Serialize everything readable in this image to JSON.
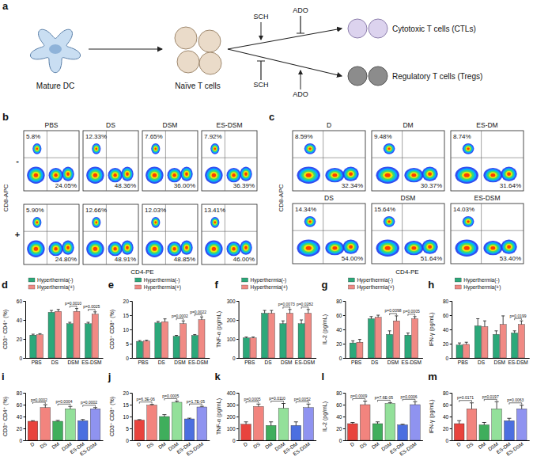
{
  "diagram": {
    "panel": "a",
    "dc": "Mature DC",
    "naive": "Naïve T cells",
    "ctl": "Cytotoxic T cells (CTLs)",
    "treg": "Regulatory T cells (Tregs)",
    "ctl_modulators": [
      "SCH",
      "ADO"
    ],
    "treg_modulators": [
      "SCH",
      "ADO"
    ]
  },
  "flow_b": {
    "panel": "b",
    "y_label": "CD8-APC",
    "x_label": "CD4-PE",
    "columns": [
      "PBS",
      "DS",
      "DSM",
      "ES-DSM"
    ],
    "rows": [
      {
        "label": "-",
        "cd8": [
          "5.8%",
          "12.33%",
          "7.65%",
          "7.92%"
        ],
        "cd4": [
          "24.05%",
          "48.36%",
          "36.00%",
          "36.39%"
        ]
      },
      {
        "label": "+",
        "cd8": [
          "5.90%",
          "12.66%",
          "12.03%",
          "13.41%"
        ],
        "cd4": [
          "24.80%",
          "48.91%",
          "48.85%",
          "46.00%"
        ]
      }
    ]
  },
  "flow_c": {
    "panel": "c",
    "y_label": "CD8-APC",
    "x_label": "CD4-PE",
    "plots": [
      {
        "title": "D",
        "cd8": "8.59%",
        "cd4": "32.34%"
      },
      {
        "title": "DM",
        "cd8": "9.48%",
        "cd4": "30.37%"
      },
      {
        "title": "ES-DM",
        "cd8": "8.74%",
        "cd4": "31.64%"
      },
      {
        "title": "DS",
        "cd8": "14.34%",
        "cd4": "54.00%"
      },
      {
        "title": "DSM",
        "cd8": "15.64%",
        "cd4": "51.64%"
      },
      {
        "title": "ES-DSM",
        "cd8": "14.03%",
        "cd4": "53.40%"
      }
    ]
  },
  "chart_data": [
    {
      "type": "bar",
      "panel": "d",
      "y_label": "CD3⁺ CD4⁺ (%)",
      "categories": [
        "PBS",
        "DS",
        "DSM",
        "ES-DSM"
      ],
      "series": [
        {
          "name": "Hyperthermia(-)",
          "color": "#2ca87a",
          "values": [
            24,
            48,
            36,
            36
          ],
          "errors": [
            1,
            2,
            1.5,
            1.5
          ]
        },
        {
          "name": "Hyperthermia(+)",
          "color": "#f08a84",
          "values": [
            24.5,
            49,
            49,
            46
          ],
          "errors": [
            1,
            2,
            3,
            2.5
          ]
        }
      ],
      "ylim": [
        0,
        60
      ],
      "yticks": [
        0,
        20,
        40,
        60
      ],
      "legend": "top",
      "annotations": [
        {
          "category": 2,
          "label": "p=0.0010"
        },
        {
          "category": 3,
          "label": "p=0.0025"
        }
      ]
    },
    {
      "type": "bar",
      "panel": "e",
      "y_label": "CD3⁺ CD8⁺ (%)",
      "categories": [
        "PBS",
        "DS",
        "DSM",
        "ES-DSM"
      ],
      "series": [
        {
          "name": "Hyperthermia(-)",
          "color": "#2ca87a",
          "values": [
            5.8,
            12.3,
            7.6,
            7.9
          ],
          "errors": [
            0.3,
            0.5,
            0.3,
            0.3
          ]
        },
        {
          "name": "Hyperthermia(+)",
          "color": "#f08a84",
          "values": [
            5.9,
            12.7,
            12.0,
            13.4
          ],
          "errors": [
            0.3,
            1,
            1,
            1
          ]
        }
      ],
      "ylim": [
        0,
        20
      ],
      "yticks": [
        0,
        5,
        10,
        15,
        20
      ],
      "legend": "top",
      "annotations": [
        {
          "category": 2,
          "label": "p=0.0002"
        },
        {
          "category": 3,
          "label": "p=0.0022"
        }
      ]
    },
    {
      "type": "bar",
      "panel": "f",
      "y_label": "TNF-α (pg/mL)",
      "categories": [
        "PBS",
        "DS",
        "DSM",
        "ES-DSM"
      ],
      "series": [
        {
          "name": "Hyperthermia(-)",
          "color": "#2ca87a",
          "values": [
            105,
            235,
            180,
            180
          ],
          "errors": [
            5,
            15,
            15,
            20
          ]
        },
        {
          "name": "Hyperthermia(+)",
          "color": "#f08a84",
          "values": [
            105,
            235,
            235,
            235
          ],
          "errors": [
            5,
            15,
            20,
            20
          ]
        }
      ],
      "ylim": [
        0,
        300
      ],
      "yticks": [
        0,
        100,
        200,
        300
      ],
      "legend": "top",
      "annotations": [
        {
          "category": 2,
          "label": "p=0.0073"
        },
        {
          "category": 3,
          "label": "p=0.0282"
        }
      ]
    },
    {
      "type": "bar",
      "panel": "g",
      "y_label": "IL-2 (pg/mL)",
      "categories": [
        "PBS",
        "DS",
        "DSM",
        "ES-DSM"
      ],
      "series": [
        {
          "name": "Hyperthermia(-)",
          "color": "#2ca87a",
          "values": [
            21,
            55,
            33,
            32
          ],
          "errors": [
            3,
            3,
            5,
            3
          ]
        },
        {
          "name": "Hyperthermia(+)",
          "color": "#f08a84",
          "values": [
            22,
            57,
            52,
            55
          ],
          "errors": [
            4,
            3,
            7,
            3
          ]
        }
      ],
      "ylim": [
        0,
        80
      ],
      "yticks": [
        0,
        20,
        40,
        60,
        80
      ],
      "legend": "top",
      "annotations": [
        {
          "category": 2,
          "label": "p=0.0098"
        },
        {
          "category": 3,
          "label": "p=0.0005"
        }
      ]
    },
    {
      "type": "bar",
      "panel": "h",
      "y_label": "IFN-γ (pg/mL)",
      "categories": [
        "PBS",
        "DS",
        "DSM",
        "ES-DSM"
      ],
      "series": [
        {
          "name": "Hyperthermia(-)",
          "color": "#2ca87a",
          "values": [
            18,
            45,
            33,
            35
          ],
          "errors": [
            3,
            10,
            5,
            3
          ]
        },
        {
          "name": "Hyperthermia(+)",
          "color": "#f08a84",
          "values": [
            19,
            44,
            47,
            47
          ],
          "errors": [
            3,
            8,
            12,
            5
          ]
        }
      ],
      "ylim": [
        0,
        80
      ],
      "yticks": [
        0,
        20,
        40,
        60,
        80
      ],
      "legend": "top",
      "annotations": [
        {
          "category": 3,
          "label": "p=0.0199"
        }
      ]
    },
    {
      "type": "bar",
      "panel": "i",
      "y_label": "CD3⁺ CD4⁺ (%)",
      "categories": [
        "D",
        "DS",
        "DM",
        "DSM",
        "ES-DM",
        "ES-DSM"
      ],
      "values": [
        32,
        55,
        32,
        53,
        33,
        53
      ],
      "errors": [
        1,
        5,
        1.5,
        4,
        2,
        2
      ],
      "colors": [
        "#e8433d",
        "#f2847e",
        "#3fae5c",
        "#93e09a",
        "#4b6fe0",
        "#8f93f0"
      ],
      "ylim": [
        0,
        80
      ],
      "yticks": [
        0,
        20,
        40,
        60,
        80
      ],
      "annotations": [
        {
          "between": [
            0,
            1
          ],
          "label": "p=0.0002"
        },
        {
          "between": [
            2,
            3
          ],
          "label": "p=0.0004"
        },
        {
          "between": [
            4,
            5
          ],
          "label": "p=0.0002"
        }
      ]
    },
    {
      "type": "bar",
      "panel": "j",
      "y_label": "CD3⁺ CD8⁺ (%)",
      "categories": [
        "D",
        "DS",
        "DM",
        "DSM",
        "ES-DM",
        "ES-DSM"
      ],
      "values": [
        8.5,
        14.8,
        10,
        16,
        9,
        14
      ],
      "errors": [
        0.2,
        0.3,
        0.8,
        0.5,
        0.3,
        0.3
      ],
      "colors": [
        "#e8433d",
        "#f2847e",
        "#3fae5c",
        "#93e09a",
        "#4b6fe0",
        "#8f93f0"
      ],
      "ylim": [
        0,
        20
      ],
      "yticks": [
        0,
        5,
        10,
        15,
        20
      ],
      "annotations": [
        {
          "between": [
            0,
            1
          ],
          "label": "p=6.3E-06"
        },
        {
          "between": [
            2,
            3
          ],
          "label": "p=0.0005"
        },
        {
          "between": [
            4,
            5
          ],
          "label": "p=1.7E-05"
        }
      ]
    },
    {
      "type": "bar",
      "panel": "k",
      "y_label": "TNF-α (pg/mL)",
      "categories": [
        "D",
        "DS",
        "DM",
        "DSM",
        "ES-DM",
        "ES-DSM"
      ],
      "values": [
        135,
        285,
        125,
        270,
        125,
        275
      ],
      "errors": [
        20,
        20,
        30,
        40,
        30,
        30
      ],
      "colors": [
        "#e8433d",
        "#f2847e",
        "#3fae5c",
        "#93e09a",
        "#4b6fe0",
        "#8f93f0"
      ],
      "ylim": [
        0,
        400
      ],
      "yticks": [
        0,
        100,
        200,
        300,
        400
      ],
      "annotations": [
        {
          "between": [
            0,
            1
          ],
          "label": "p=0.0005"
        },
        {
          "between": [
            2,
            3
          ],
          "label": "p=0.0110"
        },
        {
          "between": [
            4,
            5
          ],
          "label": "p=0.0052"
        }
      ]
    },
    {
      "type": "bar",
      "panel": "l",
      "y_label": "IL-2 (pg/mL)",
      "categories": [
        "D",
        "DS",
        "DM",
        "DSM",
        "ES-DM",
        "ES-DSM"
      ],
      "values": [
        28,
        60,
        28,
        62,
        26,
        60
      ],
      "errors": [
        2,
        6,
        3,
        1.5,
        1,
        5
      ],
      "colors": [
        "#e8433d",
        "#f2847e",
        "#3fae5c",
        "#93e09a",
        "#4b6fe0",
        "#8f93f0"
      ],
      "ylim": [
        0,
        80
      ],
      "yticks": [
        0,
        20,
        40,
        60,
        80
      ],
      "annotations": [
        {
          "between": [
            0,
            1
          ],
          "label": "p=0.0009"
        },
        {
          "between": [
            2,
            3
          ],
          "label": "p=7.6E-05"
        },
        {
          "between": [
            4,
            5
          ],
          "label": "p=0.0006"
        }
      ]
    },
    {
      "type": "bar",
      "panel": "m",
      "y_label": "IFN-γ (pg/mL)",
      "categories": [
        "D",
        "DS",
        "DM",
        "DSM",
        "ES-DM",
        "ES-DSM"
      ],
      "values": [
        28,
        53,
        26,
        53,
        33,
        53
      ],
      "errors": [
        5,
        10,
        4,
        12,
        4,
        6
      ],
      "colors": [
        "#e8433d",
        "#f2847e",
        "#3fae5c",
        "#93e09a",
        "#4b6fe0",
        "#8f93f0"
      ],
      "ylim": [
        0,
        80
      ],
      "yticks": [
        0,
        20,
        40,
        60,
        80
      ],
      "annotations": [
        {
          "between": [
            0,
            1
          ],
          "label": "p=0.0171"
        },
        {
          "between": [
            2,
            3
          ],
          "label": "p=0.0197"
        },
        {
          "between": [
            4,
            5
          ],
          "label": "p=0.0063"
        }
      ]
    }
  ]
}
